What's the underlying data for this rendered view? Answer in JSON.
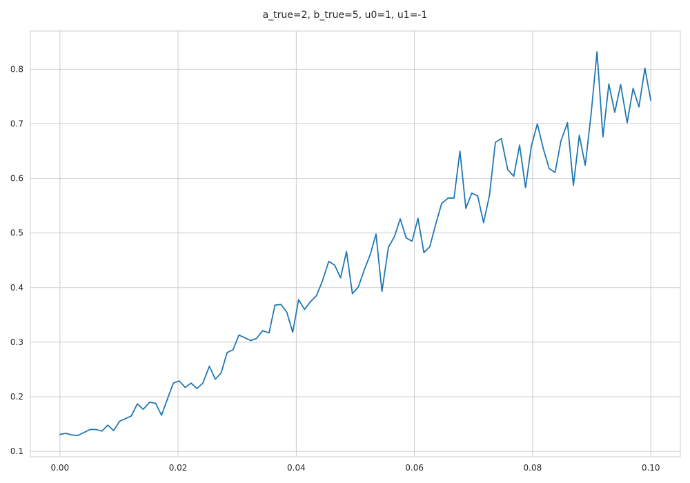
{
  "chart_data": {
    "type": "line",
    "title": "a_true=2, b_true=5, u0=1, u1=-1",
    "xlabel": "",
    "ylabel": "",
    "xlim": [
      -0.005,
      0.105
    ],
    "ylim": [
      0.09,
      0.87
    ],
    "grid": true,
    "style": {
      "line_color": "#1f77b4",
      "grid_color": "#cccccc",
      "frame_color": "#cccccc"
    },
    "xticks": [
      0.0,
      0.02,
      0.04,
      0.06,
      0.08,
      0.1
    ],
    "xtick_labels": [
      "0.00",
      "0.02",
      "0.04",
      "0.06",
      "0.08",
      "0.10"
    ],
    "yticks": [
      0.1,
      0.2,
      0.3,
      0.4,
      0.5,
      0.6,
      0.7,
      0.8
    ],
    "ytick_labels": [
      "0.1",
      "0.2",
      "0.3",
      "0.4",
      "0.5",
      "0.6",
      "0.7",
      "0.8"
    ],
    "series": [
      {
        "x": [
          0.0,
          0.001,
          0.002,
          0.003,
          0.004,
          0.0051,
          0.0061,
          0.0071,
          0.0081,
          0.0091,
          0.0101,
          0.0111,
          0.0121,
          0.0131,
          0.0141,
          0.0152,
          0.0162,
          0.0172,
          0.0182,
          0.0192,
          0.0202,
          0.0212,
          0.0222,
          0.0232,
          0.0242,
          0.0253,
          0.0263,
          0.0273,
          0.0283,
          0.0293,
          0.0303,
          0.0313,
          0.0323,
          0.0333,
          0.0343,
          0.0354,
          0.0364,
          0.0374,
          0.0384,
          0.0394,
          0.0404,
          0.0414,
          0.0424,
          0.0434,
          0.0444,
          0.0455,
          0.0465,
          0.0475,
          0.0485,
          0.0495,
          0.0505,
          0.0515,
          0.0525,
          0.0535,
          0.0545,
          0.0556,
          0.0566,
          0.0576,
          0.0586,
          0.0596,
          0.0606,
          0.0616,
          0.0626,
          0.0636,
          0.0646,
          0.0657,
          0.0667,
          0.0677,
          0.0687,
          0.0697,
          0.0707,
          0.0717,
          0.0727,
          0.0737,
          0.0747,
          0.0758,
          0.0768,
          0.0778,
          0.0788,
          0.0798,
          0.0808,
          0.0818,
          0.0828,
          0.0838,
          0.0848,
          0.0859,
          0.0869,
          0.0879,
          0.0889,
          0.0899,
          0.0909,
          0.0919,
          0.0929,
          0.0939,
          0.0949,
          0.096,
          0.097,
          0.098,
          0.099,
          0.1
        ],
        "y": [
          0.131,
          0.133,
          0.13,
          0.129,
          0.134,
          0.14,
          0.14,
          0.137,
          0.148,
          0.138,
          0.155,
          0.16,
          0.165,
          0.187,
          0.177,
          0.19,
          0.188,
          0.166,
          0.196,
          0.225,
          0.229,
          0.217,
          0.225,
          0.215,
          0.225,
          0.256,
          0.232,
          0.244,
          0.281,
          0.286,
          0.313,
          0.308,
          0.303,
          0.307,
          0.321,
          0.317,
          0.368,
          0.369,
          0.355,
          0.318,
          0.378,
          0.36,
          0.374,
          0.385,
          0.411,
          0.448,
          0.441,
          0.418,
          0.466,
          0.389,
          0.401,
          0.432,
          0.46,
          0.498,
          0.393,
          0.474,
          0.493,
          0.526,
          0.491,
          0.485,
          0.527,
          0.464,
          0.475,
          0.516,
          0.554,
          0.564,
          0.564,
          0.65,
          0.545,
          0.573,
          0.568,
          0.519,
          0.569,
          0.666,
          0.673,
          0.616,
          0.604,
          0.661,
          0.583,
          0.66,
          0.7,
          0.655,
          0.618,
          0.611,
          0.669,
          0.702,
          0.587,
          0.679,
          0.624,
          0.718,
          0.832,
          0.676,
          0.773,
          0.721,
          0.772,
          0.702,
          0.765,
          0.731,
          0.802,
          0.743
        ]
      }
    ]
  }
}
